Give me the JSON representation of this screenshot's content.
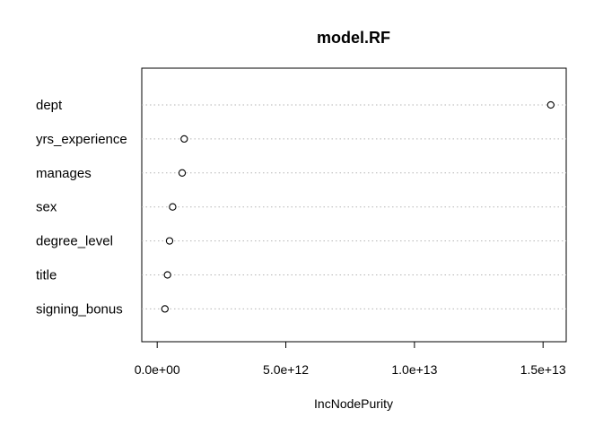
{
  "chart_data": {
    "type": "scatter",
    "title": "model.RF",
    "xlabel": "IncNodePurity",
    "ylabel": "",
    "categories": [
      "dept",
      "yrs_experience",
      "manages",
      "sex",
      "degree_level",
      "title",
      "signing_bonus"
    ],
    "values": [
      15300000000000,
      1050000000000,
      970000000000,
      600000000000,
      480000000000,
      400000000000,
      300000000000
    ],
    "xlim": [
      -600000000000,
      15900000000000
    ],
    "xticks": [
      0,
      5000000000000,
      10000000000000,
      15000000000000
    ],
    "xtick_labels": [
      "0.0e+00",
      "5.0e+12",
      "1.0e+13",
      "1.5e+13"
    ],
    "grid": "dotted horizontal lines per category",
    "legend": "none"
  }
}
